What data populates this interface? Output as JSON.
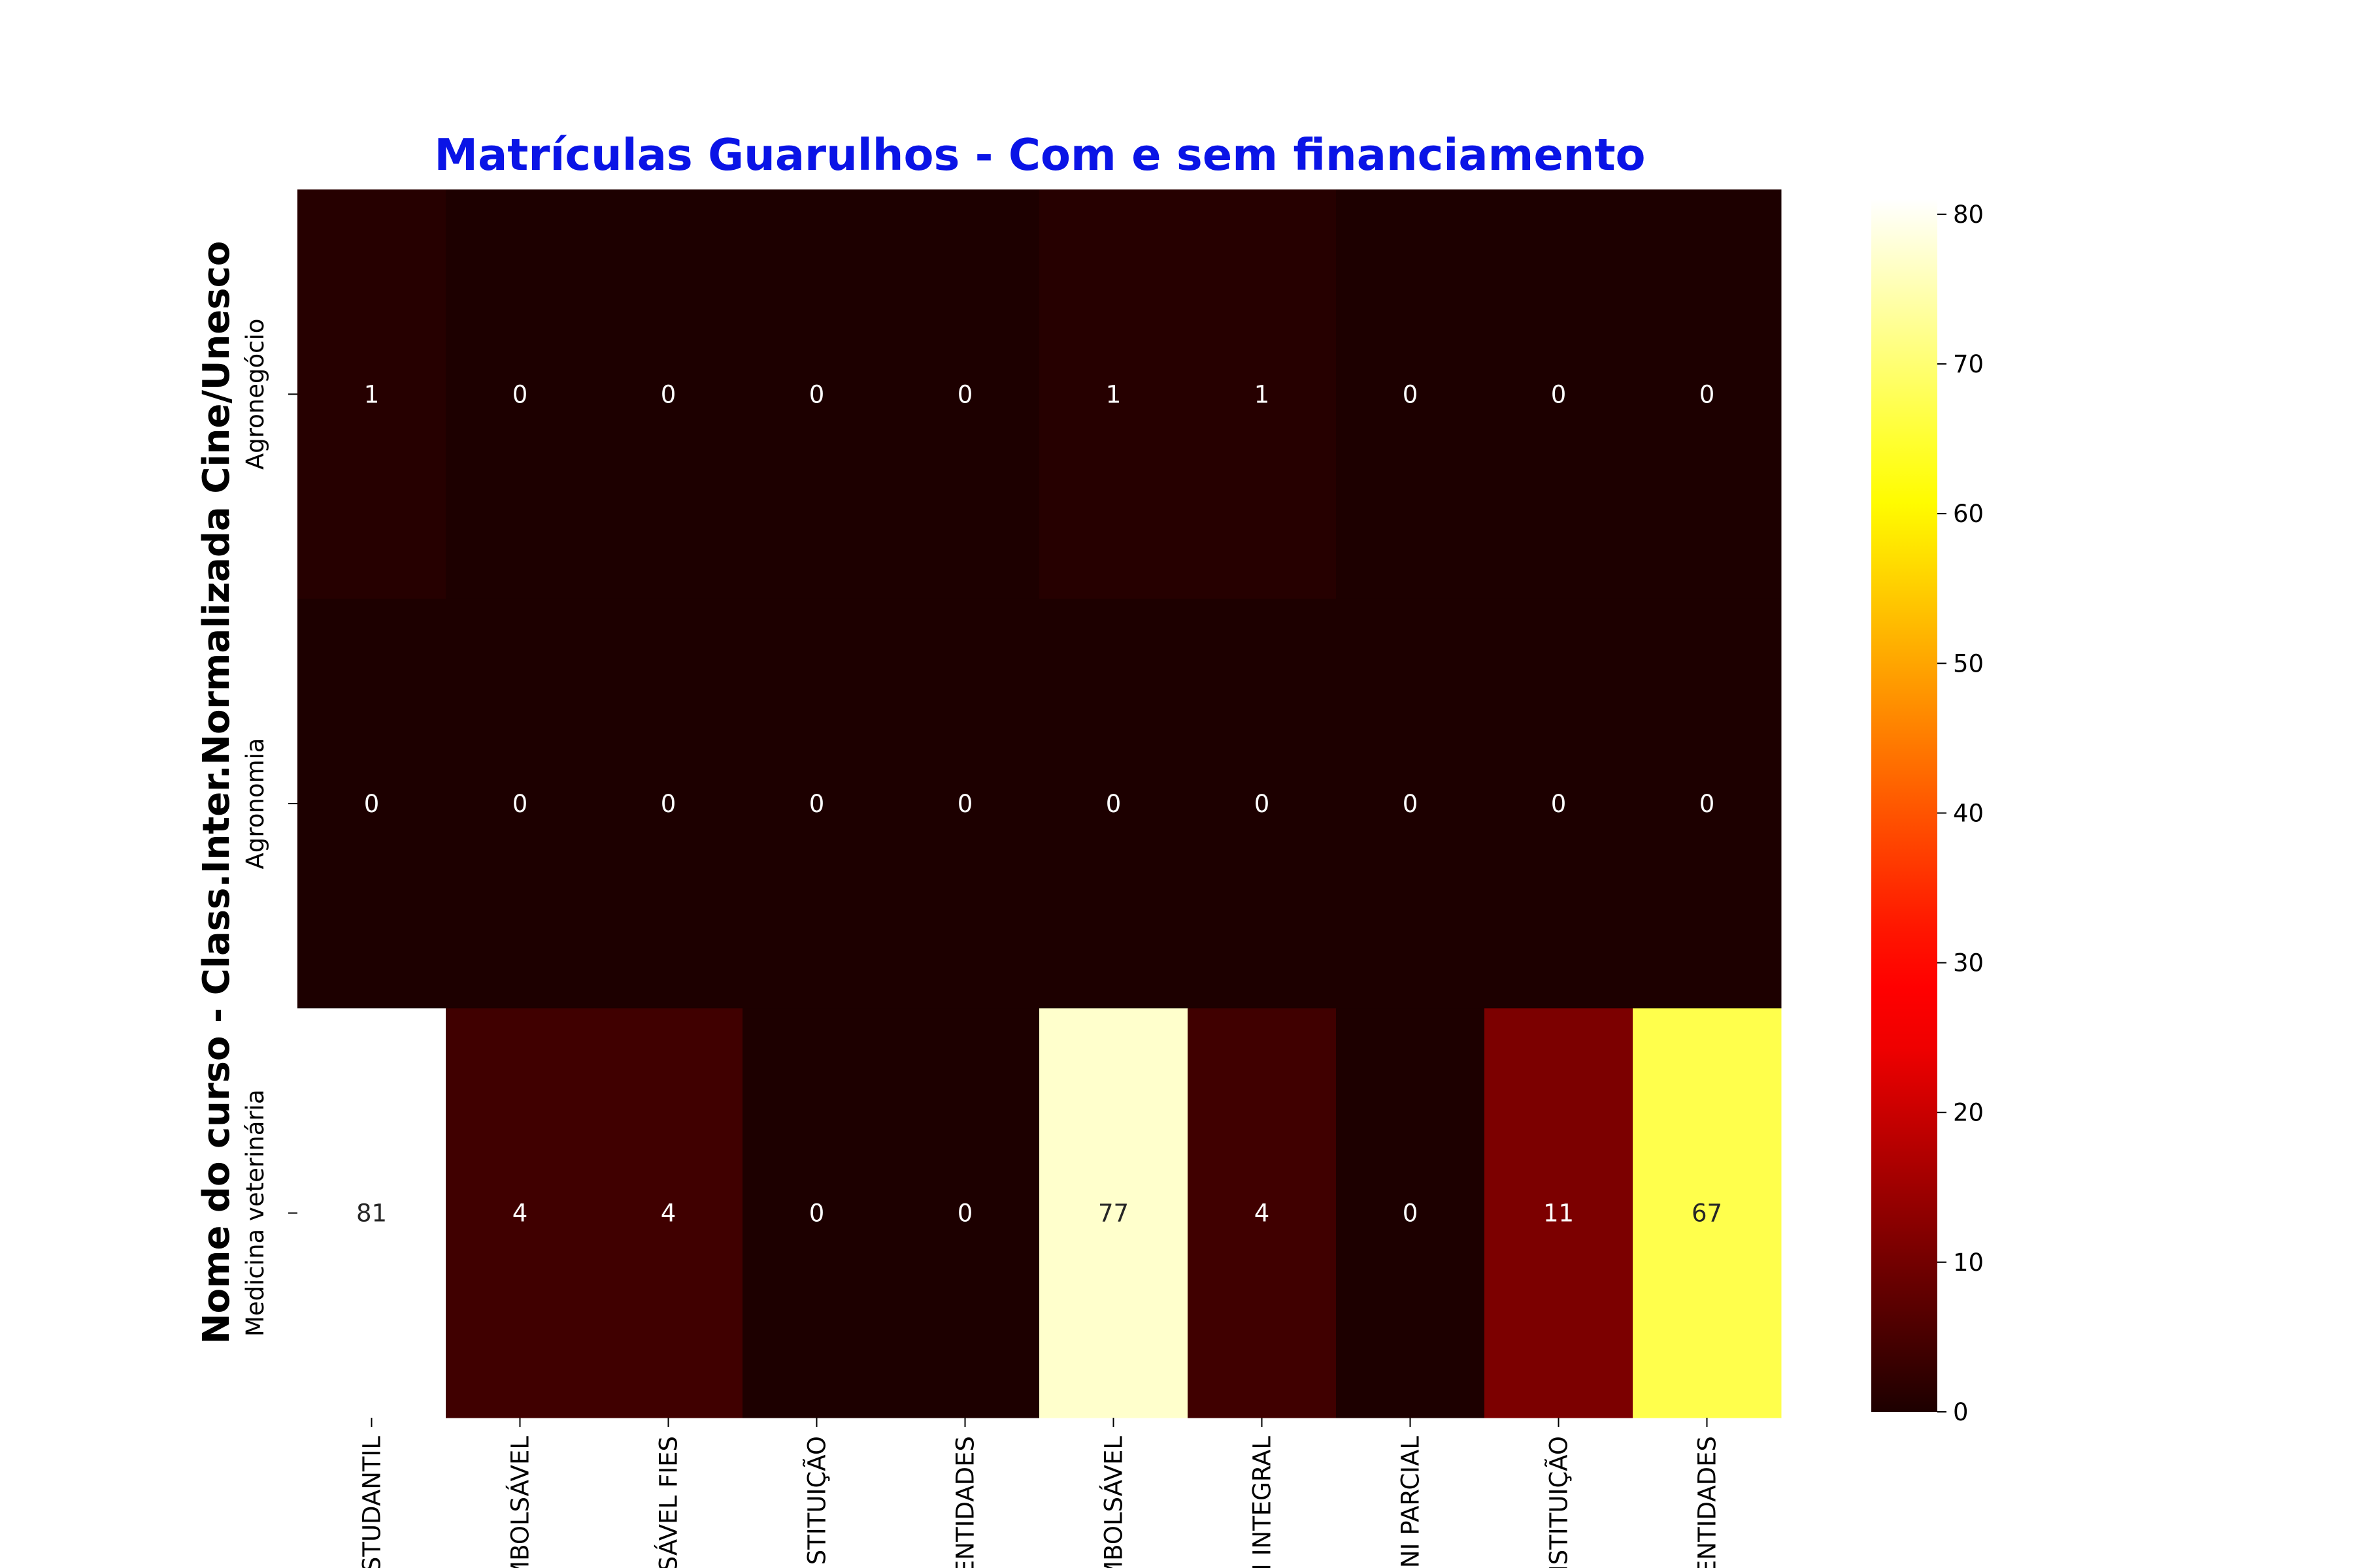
{
  "chart_data": {
    "type": "heatmap",
    "title": "Matrículas Guarulhos - Com e sem financiamento",
    "ylabel": "Nome do curso - Class.Inter.Normalizada Cine/Unesco",
    "xlabel": "",
    "rows": [
      "Agronegócio",
      "Agronomia",
      "Medicina veterinária"
    ],
    "columns": [
      "STUDANTIL",
      "MBOLSÁVEL",
      "SÁVEL FIES",
      "STITUIÇÃO",
      "ENTIDADES",
      "MBOLSÁVEL",
      "I INTEGRAL",
      "INI PARCIAL",
      "NSTITUIÇÃO",
      "ENTIDADES"
    ],
    "values": [
      [
        1,
        0,
        0,
        0,
        0,
        1,
        1,
        0,
        0,
        0
      ],
      [
        0,
        0,
        0,
        0,
        0,
        0,
        0,
        0,
        0,
        0
      ],
      [
        81,
        4,
        4,
        0,
        0,
        77,
        4,
        0,
        11,
        67
      ]
    ],
    "colormap": "hot",
    "colorbar": {
      "range": [
        0,
        81
      ],
      "ticks": [
        0,
        10,
        20,
        30,
        40,
        50,
        60,
        70,
        80
      ]
    },
    "colors": {
      "title": "#0a14e6"
    }
  }
}
